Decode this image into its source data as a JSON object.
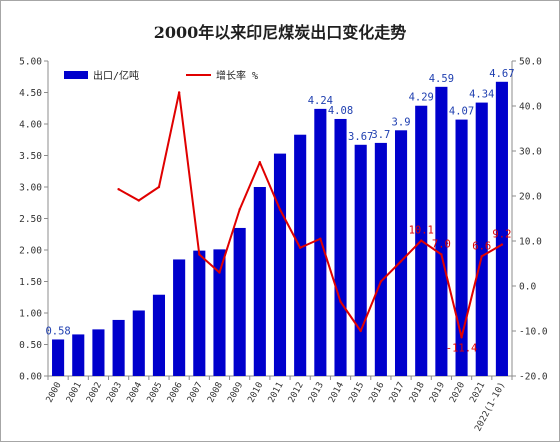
{
  "chart_data": {
    "type": "bar",
    "title": "2000年以来印尼煤炭出口变化走势",
    "categories": [
      "2000",
      "2001",
      "2002",
      "2003",
      "2004",
      "2005",
      "2006",
      "2007",
      "2008",
      "2009",
      "2010",
      "2011",
      "2012",
      "2013",
      "2014",
      "2015",
      "2016",
      "2017",
      "2018",
      "2019",
      "2020",
      "2021",
      "2022(1-10)"
    ],
    "series": [
      {
        "name": "出口/亿吨",
        "kind": "bar",
        "axis": "left",
        "color": "#0000cc",
        "values": [
          0.58,
          0.66,
          0.74,
          0.89,
          1.04,
          1.29,
          1.85,
          1.99,
          2.01,
          2.35,
          3.0,
          3.53,
          3.83,
          4.24,
          4.08,
          3.67,
          3.7,
          3.9,
          4.29,
          4.59,
          4.07,
          4.34,
          4.67
        ],
        "labels": [
          "0.58",
          "",
          "",
          "",
          "",
          "",
          "",
          "",
          "",
          "",
          "",
          "",
          "",
          "4.24",
          "4.08",
          "3.67",
          "3.7",
          "3.9",
          "4.29",
          "4.59",
          "4.07",
          "4.34",
          "4.67"
        ]
      },
      {
        "name": "增长率 %",
        "kind": "line",
        "axis": "right",
        "color": "#e00000",
        "values": [
          null,
          null,
          null,
          21.5,
          19.0,
          22.0,
          43.0,
          7.0,
          3.0,
          17.0,
          27.5,
          17.0,
          8.5,
          10.5,
          -3.5,
          -10.0,
          1.0,
          5.5,
          10.1,
          7.0,
          -11.4,
          6.6,
          9.2
        ],
        "labels": [
          "",
          "",
          "",
          "",
          "",
          "",
          "",
          "",
          "",
          "",
          "",
          "",
          "",
          "",
          "",
          "",
          "",
          "",
          "10.1",
          "7.0",
          "-11.4",
          "6.6",
          "9.2"
        ]
      }
    ],
    "y_left": {
      "min": 0,
      "max": 5,
      "step": 0.5,
      "ticks": [
        "0.00",
        "0.50",
        "1.00",
        "1.50",
        "2.00",
        "2.50",
        "3.00",
        "3.50",
        "4.00",
        "4.50",
        "5.00"
      ]
    },
    "y_right": {
      "min": -20,
      "max": 50,
      "step": 10,
      "ticks": [
        "-20.0",
        "-10.0",
        "0.0",
        "10.0",
        "20.0",
        "30.0",
        "40.0",
        "50.0"
      ]
    },
    "grid": false,
    "legend": "top-left"
  }
}
